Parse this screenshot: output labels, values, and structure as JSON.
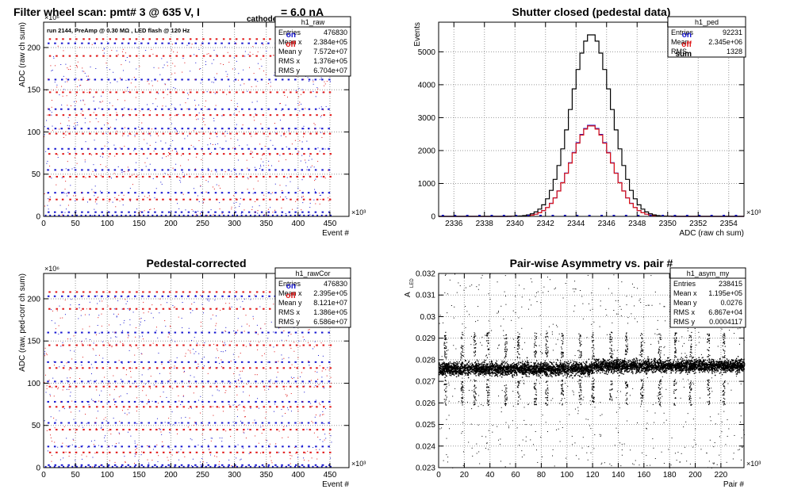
{
  "colors": {
    "on": "#1515d0",
    "off": "#e01515",
    "sum": "#000000",
    "grid": "#999999"
  },
  "chart_data": [
    {
      "id": "raw",
      "type": "scatter",
      "title": "Filter wheel scan: pmt#   3 @   635 V, I",
      "title_sub": "cathode",
      "title_tail": "= 6.0 nA",
      "annotation": "run 2144, PreAmp @ 0.30 MΩ , LED flash @  120 Hz",
      "xlabel": "Event #",
      "ylabel": "ADC (raw ch sum)",
      "x_exp": "×10³",
      "y_exp": "×10⁶",
      "xlim": [
        0,
        480
      ],
      "ylim": [
        0,
        230
      ],
      "xticks": [
        0,
        50,
        100,
        150,
        200,
        250,
        300,
        350,
        400,
        450
      ],
      "yticks": [
        0,
        50,
        100,
        150,
        200
      ],
      "legend": [
        {
          "label": "on",
          "color": "#1515d0"
        },
        {
          "label": "off",
          "color": "#e01515"
        }
      ],
      "stats": {
        "name": "h1_raw",
        "rows": [
          [
            "Entries",
            "476830"
          ],
          [
            "Mean x",
            "2.384e+05"
          ],
          [
            "Mean y",
            "7.572e+07"
          ],
          [
            "RMS x",
            "1.376e+05"
          ],
          [
            "RMS y",
            "6.704e+07"
          ]
        ]
      },
      "series": [
        {
          "name": "on",
          "levels": [
            5,
            28,
            55,
            80,
            104,
            127,
            162,
            205
          ]
        },
        {
          "name": "off",
          "levels": [
            20,
            47,
            74,
            98,
            120,
            147,
            190,
            210
          ]
        }
      ]
    },
    {
      "id": "ped",
      "type": "line",
      "title": "Shutter closed (pedestal data)",
      "xlabel": "ADC (raw ch sum)",
      "ylabel": "Events",
      "x_exp": "×10³",
      "xlim": [
        2335,
        2355
      ],
      "ylim": [
        0,
        5900
      ],
      "xticks": [
        2336,
        2338,
        2340,
        2342,
        2344,
        2346,
        2348,
        2350,
        2352,
        2354
      ],
      "yticks": [
        0,
        1000,
        2000,
        3000,
        4000,
        5000
      ],
      "legend": [
        {
          "label": "on",
          "color": "#1515d0"
        },
        {
          "label": "off",
          "color": "#e01515"
        },
        {
          "label": "sum",
          "color": "#000000"
        }
      ],
      "stats": {
        "name": "h1_ped",
        "rows": [
          [
            "Entries",
            "92231"
          ],
          [
            "Mean",
            "2.345e+06"
          ],
          [
            "RMS",
            "1328"
          ]
        ]
      },
      "series": [
        {
          "name": "on",
          "mean": 2345.0,
          "sigma": 1.33,
          "peak": 2780
        },
        {
          "name": "off",
          "mean": 2345.0,
          "sigma": 1.33,
          "peak": 2760
        },
        {
          "name": "sum",
          "mean": 2345.0,
          "sigma": 1.33,
          "peak": 5540
        }
      ]
    },
    {
      "id": "cor",
      "type": "scatter",
      "title": "Pedestal-corrected",
      "xlabel": "Event #",
      "ylabel": "ADC (raw, ped-corr ch sum)",
      "x_exp": "×10³",
      "y_exp": "×10⁶",
      "xlim": [
        0,
        480
      ],
      "ylim": [
        0,
        230
      ],
      "xticks": [
        0,
        50,
        100,
        150,
        200,
        250,
        300,
        350,
        400,
        450
      ],
      "yticks": [
        0,
        50,
        100,
        150,
        200
      ],
      "legend": [
        {
          "label": "on",
          "color": "#1515d0"
        },
        {
          "label": "off",
          "color": "#e01515"
        }
      ],
      "stats": {
        "name": "h1_rawCor",
        "rows": [
          [
            "Entries",
            "476830"
          ],
          [
            "Mean x",
            "2.395e+05"
          ],
          [
            "Mean y",
            "8.121e+07"
          ],
          [
            "RMS x",
            "1.386e+05"
          ],
          [
            "RMS y",
            "6.586e+07"
          ]
        ]
      },
      "series": [
        {
          "name": "on",
          "levels": [
            3,
            25,
            53,
            78,
            102,
            125,
            160,
            203
          ]
        },
        {
          "name": "off",
          "levels": [
            18,
            45,
            72,
            96,
            118,
            145,
            188,
            208
          ]
        }
      ]
    },
    {
      "id": "asym",
      "type": "scatter",
      "title": "Pair-wise Asymmetry vs. pair #",
      "xlabel": "Pair #",
      "ylabel": "A",
      "ylabel_sub": "LED",
      "x_exp": "×10³",
      "xlim": [
        0,
        238
      ],
      "ylim": [
        0.023,
        0.032
      ],
      "xticks": [
        0,
        20,
        40,
        60,
        80,
        100,
        120,
        140,
        160,
        180,
        200,
        220
      ],
      "yticks": [
        0.023,
        0.024,
        0.025,
        0.026,
        0.027,
        0.028,
        0.029,
        0.03,
        0.031,
        0.032
      ],
      "stats": {
        "name": "h1_asym_my",
        "rows": [
          [
            "Entries",
            "238415"
          ],
          [
            "Mean x",
            "1.195e+05"
          ],
          [
            "Mean y",
            "0.0276"
          ],
          [
            "RMS x",
            "6.867e+04"
          ],
          [
            "RMS y",
            "0.0004117"
          ]
        ]
      },
      "series": [
        {
          "name": "asymmetry",
          "mean": 0.0276,
          "rms": 0.0004117
        }
      ]
    }
  ]
}
